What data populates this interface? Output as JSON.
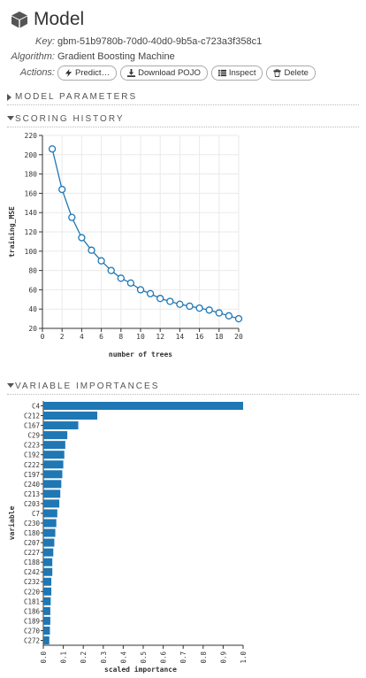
{
  "page": {
    "title": "Model",
    "icon": "cube-icon"
  },
  "meta": {
    "key_label": "Key:",
    "key_value": "gbm-51b9780b-70d0-40d0-9b5a-c723a3f358c1",
    "algorithm_label": "Algorithm:",
    "algorithm_value": "Gradient Boosting Machine",
    "actions_label": "Actions:"
  },
  "actions": {
    "predict": "Predict…",
    "download": "Download POJO",
    "inspect": "Inspect",
    "delete": "Delete"
  },
  "sections": {
    "model_parameters": "MODEL PARAMETERS",
    "scoring_history": "SCORING HISTORY",
    "variable_importances": "VARIABLE IMPORTANCES"
  },
  "chart_data": [
    {
      "type": "line",
      "xlabel": "number of trees",
      "ylabel": "training_MSE",
      "xlim": [
        0,
        20
      ],
      "ylim": [
        20,
        220
      ],
      "xticks": [
        0,
        2,
        4,
        6,
        8,
        10,
        12,
        14,
        16,
        18,
        20
      ],
      "yticks": [
        20,
        40,
        60,
        80,
        100,
        120,
        140,
        160,
        180,
        200,
        220
      ],
      "grid": true,
      "x": [
        1,
        2,
        3,
        4,
        5,
        6,
        7,
        8,
        9,
        10,
        11,
        12,
        13,
        14,
        15,
        16,
        17,
        18,
        19,
        20
      ],
      "y": [
        206,
        164,
        135,
        114,
        101,
        90,
        80,
        72,
        67,
        60,
        56,
        51,
        48,
        45,
        43,
        41,
        39,
        36,
        33,
        30
      ],
      "color": "#1f77b4"
    },
    {
      "type": "bar",
      "orientation": "horizontal",
      "xlabel": "scaled importance",
      "ylabel": "variable",
      "xlim": [
        0,
        1
      ],
      "xticks": [
        "0.0",
        "0.1",
        "0.2",
        "0.3",
        "0.4",
        "0.5",
        "0.6",
        "0.7",
        "0.8",
        "0.9",
        "1.0"
      ],
      "categories": [
        "C4",
        "C212",
        "C167",
        "C29",
        "C223",
        "C192",
        "C222",
        "C197",
        "C240",
        "C213",
        "C203",
        "C7",
        "C230",
        "C180",
        "C207",
        "C227",
        "C188",
        "C242",
        "C232",
        "C220",
        "C181",
        "C186",
        "C189",
        "C270",
        "C272"
      ],
      "values": [
        1.0,
        0.27,
        0.175,
        0.12,
        0.11,
        0.105,
        0.1,
        0.095,
        0.09,
        0.085,
        0.08,
        0.07,
        0.065,
        0.06,
        0.055,
        0.05,
        0.045,
        0.045,
        0.04,
        0.04,
        0.037,
        0.035,
        0.035,
        0.033,
        0.03
      ],
      "color": "#1f77b4"
    }
  ]
}
